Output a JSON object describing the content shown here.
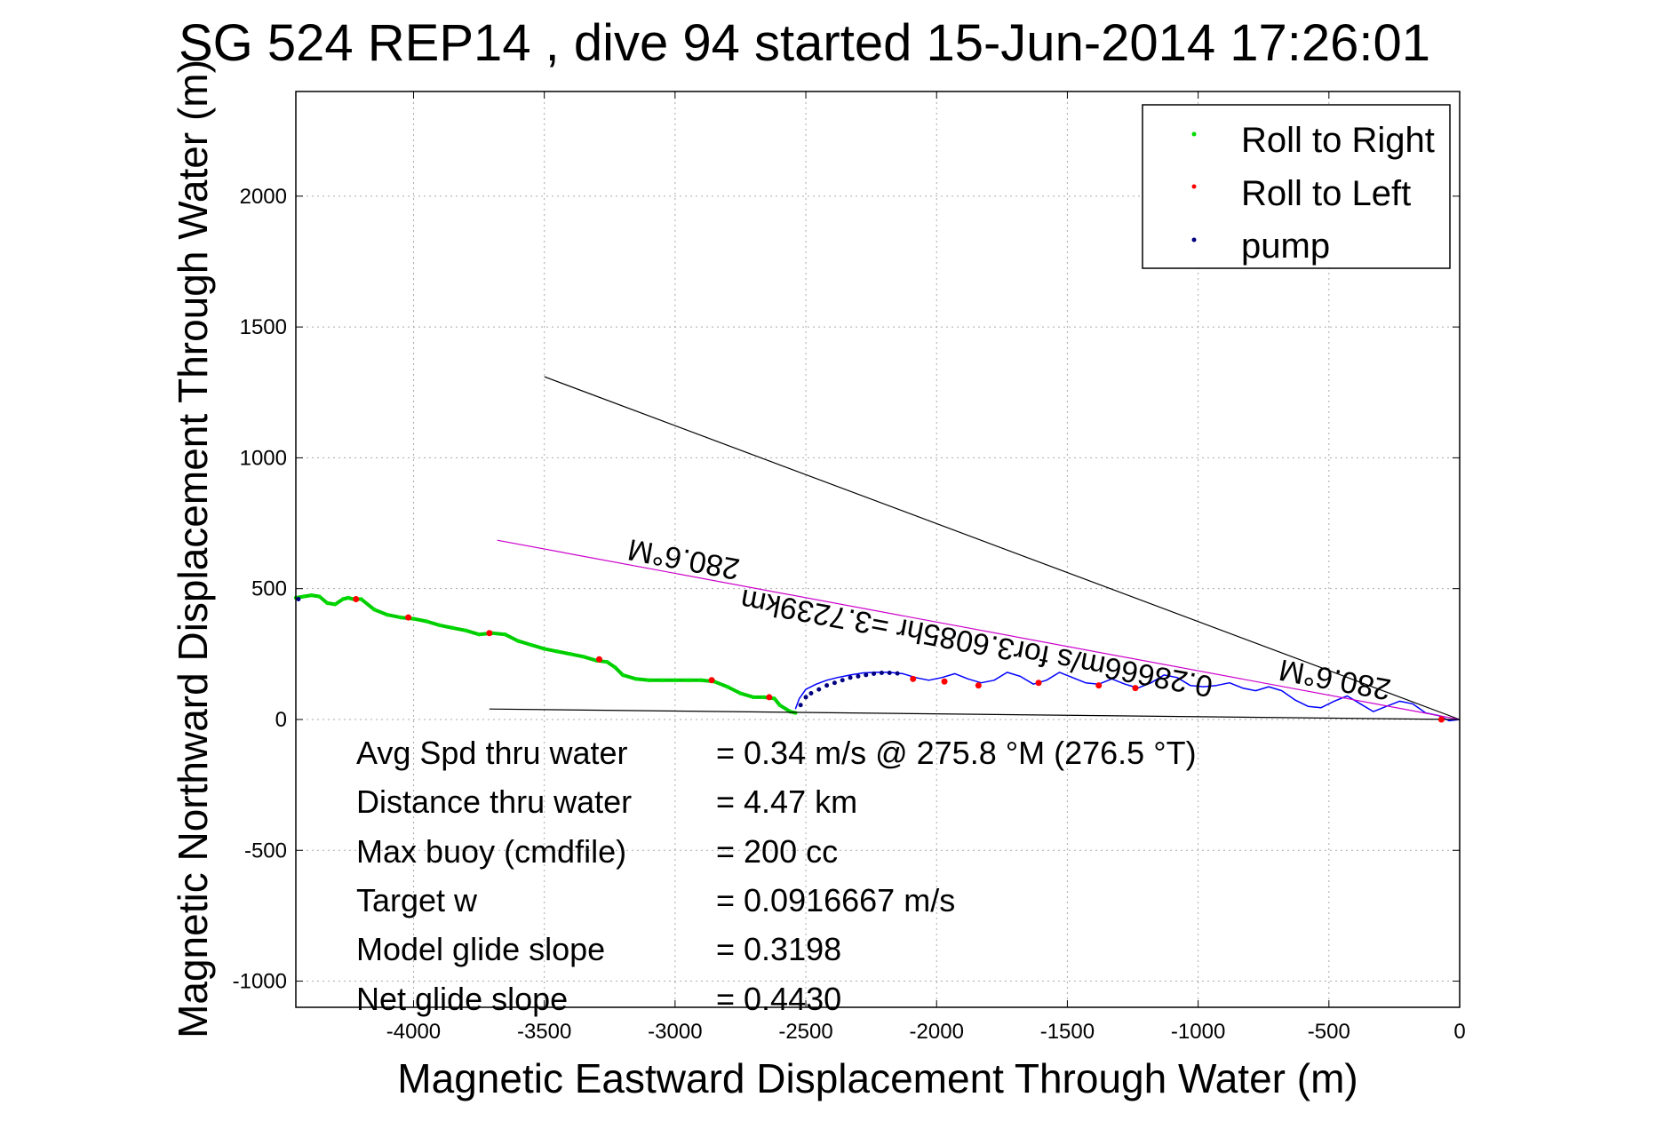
{
  "chart_data": {
    "type": "line",
    "title": "SG 524   REP14  , dive 94 started 15-Jun-2014 17:26:01",
    "xlabel": "Magnetic Eastward Displacement Through Water (m)",
    "ylabel": "Magnetic Northward Displacement Through Water (m)",
    "xlim": [
      -4450,
      0
    ],
    "ylim": [
      -1100,
      2400
    ],
    "xticks": [
      -4000,
      -3500,
      -3000,
      -2500,
      -2000,
      -1500,
      -1000,
      -500,
      0
    ],
    "yticks": [
      -1000,
      -500,
      0,
      500,
      1000,
      1500,
      2000
    ],
    "xtick_labels": [
      "-4000",
      "-3500",
      "-3000",
      "-2500",
      "-2000",
      "-1500",
      "-1000",
      "-500",
      "0"
    ],
    "ytick_labels": [
      "-1000",
      "-500",
      "0",
      "500",
      "1000",
      "1500",
      "2000"
    ],
    "grid": true,
    "legend": {
      "placement": "top-right",
      "entries": [
        {
          "label": "Roll to Right",
          "color": "#00dd00"
        },
        {
          "label": "Roll to Left",
          "color": "#ff0000"
        },
        {
          "label": "pump",
          "color": "#000080"
        }
      ]
    },
    "series": [
      {
        "name": "",
        "color": "#0000ff",
        "x": [
          0,
          -40,
          -80,
          -130,
          -180,
          -230,
          -280,
          -330,
          -380,
          -430,
          -480,
          -530,
          -580,
          -630,
          -680,
          -730,
          -780,
          -830,
          -880,
          -930,
          -980,
          -1030,
          -1080,
          -1130,
          -1180,
          -1230,
          -1280,
          -1330,
          -1380,
          -1430,
          -1480,
          -1530,
          -1580,
          -1630,
          -1680,
          -1730,
          -1780,
          -1830,
          -1880,
          -1930,
          -1980,
          -2030,
          -2080,
          -2130,
          -2180,
          -2230,
          -2280,
          -2330,
          -2380,
          -2420,
          -2460,
          -2500,
          -2525,
          -2540
        ],
        "y": [
          0,
          -5,
          15,
          25,
          60,
          70,
          50,
          30,
          60,
          90,
          70,
          45,
          50,
          75,
          110,
          125,
          110,
          120,
          140,
          130,
          125,
          130,
          160,
          170,
          140,
          120,
          135,
          155,
          135,
          140,
          160,
          180,
          150,
          135,
          165,
          180,
          150,
          140,
          155,
          175,
          160,
          150,
          160,
          175,
          180,
          180,
          178,
          170,
          160,
          150,
          135,
          115,
          80,
          40
        ]
      },
      {
        "name": "",
        "color": "#00cc00",
        "x": [
          -2540,
          -2560,
          -2600,
          -2620,
          -2660,
          -2700,
          -2750,
          -2800,
          -2850,
          -2900,
          -2950,
          -3000,
          -3050,
          -3100,
          -3150,
          -3200,
          -3230,
          -3260,
          -3300,
          -3350,
          -3400,
          -3450,
          -3500,
          -3550,
          -3600,
          -3650,
          -3700,
          -3750,
          -3800,
          -3850,
          -3900,
          -3950,
          -4000,
          -4050,
          -4100,
          -4150,
          -4200,
          -4230,
          -4250,
          -4270,
          -4300,
          -4330,
          -4360,
          -4390,
          -4420,
          -4450
        ],
        "y": [
          25,
          30,
          55,
          80,
          85,
          85,
          100,
          125,
          145,
          150,
          150,
          150,
          150,
          150,
          155,
          170,
          200,
          220,
          225,
          240,
          250,
          260,
          270,
          285,
          300,
          325,
          330,
          325,
          340,
          350,
          360,
          375,
          385,
          390,
          400,
          420,
          460,
          460,
          465,
          460,
          440,
          445,
          470,
          475,
          470,
          465
        ]
      },
      {
        "name": "",
        "color": "#000000",
        "x": [
          -3500,
          0
        ],
        "y": [
          1310,
          0
        ]
      },
      {
        "name": "",
        "color": "#cc00cc",
        "x": [
          -3680,
          0
        ],
        "y": [
          685,
          0
        ]
      },
      {
        "name": "",
        "color": "#000000",
        "x": [
          -3710,
          0
        ],
        "y": [
          40,
          0
        ]
      }
    ],
    "roll_left_points": {
      "x": [
        -4220,
        -4020,
        -3710,
        -3290,
        -2860,
        -2640,
        -2090,
        -1970,
        -1840,
        -1610,
        -1380,
        -1240,
        -70
      ],
      "y": [
        460,
        390,
        330,
        230,
        150,
        85,
        155,
        145,
        130,
        140,
        130,
        120,
        0
      ]
    },
    "pump_points": {
      "x": [
        -2520,
        -2500,
        -2480,
        -2450,
        -2420,
        -2390,
        -2360,
        -2330,
        -2300,
        -2270,
        -2240,
        -2210,
        -2180,
        -2150,
        -4440
      ],
      "y": [
        55,
        85,
        100,
        115,
        130,
        140,
        150,
        160,
        165,
        170,
        175,
        178,
        178,
        176,
        460
      ]
    },
    "annotations": [
      {
        "text": "280.6°M",
        "x": -2960,
        "y": 650,
        "rotated": true
      },
      {
        "text": "0.28666m/s for3.6085hr =3.7239km",
        "x": -1840,
        "y": 330,
        "rotated": true
      },
      {
        "text": "280.6°M",
        "x": -470,
        "y": 190,
        "rotated": true
      }
    ],
    "stats": [
      {
        "label": "Avg Spd thru water",
        "value": "=  0.34 m/s @ 275.8 °M (276.5 °T)"
      },
      {
        "label": "Distance thru water",
        "value": "=  4.47 km"
      },
      {
        "label": "Max buoy (cmdfile)",
        "value": "= 200 cc"
      },
      {
        "label": "Target w",
        "value": "= 0.0916667 m/s"
      },
      {
        "label": "Model glide slope",
        "value": "= 0.3198"
      },
      {
        "label": "Net glide slope",
        "value": "= 0.4430"
      }
    ]
  }
}
